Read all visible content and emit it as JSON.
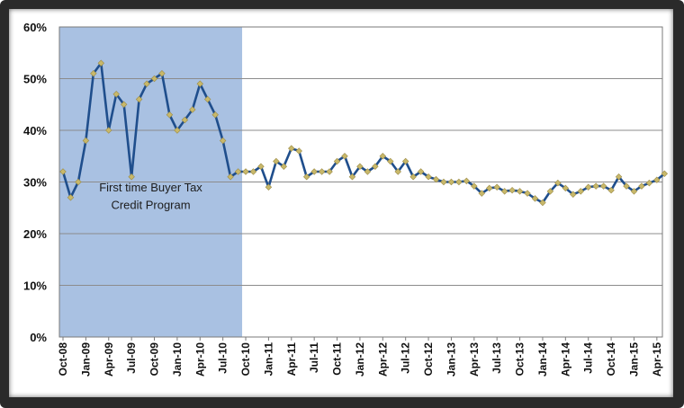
{
  "chart_data": {
    "type": "line",
    "title": "",
    "xlabel": "",
    "ylabel": "",
    "ylim": [
      0,
      60
    ],
    "y_ticks": [
      "0%",
      "10%",
      "20%",
      "30%",
      "40%",
      "50%",
      "60%"
    ],
    "x_tick_labels": [
      "Oct-08",
      "Jan-09",
      "Apr-09",
      "Jul-09",
      "Oct-09",
      "Jan-10",
      "Apr-10",
      "Jul-10",
      "Oct-10",
      "Jan-11",
      "Apr-11",
      "Jul-11",
      "Oct-11",
      "Jan-12",
      "Apr-12",
      "Jul-12",
      "Oct-12",
      "Jan-13",
      "Apr-13",
      "Jul-13",
      "Oct-13",
      "Jan-14",
      "Apr-14",
      "Jul-14",
      "Oct-14",
      "Jan-15",
      "Apr-15"
    ],
    "grid": "horizontal",
    "legend": "none",
    "shaded_region": {
      "label_line1": "First time Buyer Tax",
      "label_line2": "Credit Program",
      "from": "Oct-08",
      "to": "Oct-10",
      "color": "#a9c1e2"
    },
    "series": [
      {
        "line_color": "#1f4e8c",
        "marker_color": "#c8b86a",
        "x": [
          "Oct-08",
          "Nov-08",
          "Dec-08",
          "Jan-09",
          "Feb-09",
          "Mar-09",
          "Apr-09",
          "May-09",
          "Jun-09",
          "Jul-09",
          "Aug-09",
          "Sep-09",
          "Oct-09",
          "Nov-09",
          "Dec-09",
          "Jan-10",
          "Feb-10",
          "Mar-10",
          "Apr-10",
          "May-10",
          "Jun-10",
          "Jul-10",
          "Aug-10",
          "Sep-10",
          "Oct-10",
          "Nov-10",
          "Dec-10",
          "Jan-11",
          "Feb-11",
          "Mar-11",
          "Apr-11",
          "May-11",
          "Jun-11",
          "Jul-11",
          "Aug-11",
          "Sep-11",
          "Oct-11",
          "Nov-11",
          "Dec-11",
          "Jan-12",
          "Feb-12",
          "Mar-12",
          "Apr-12",
          "May-12",
          "Jun-12",
          "Jul-12",
          "Aug-12",
          "Sep-12",
          "Oct-12",
          "Nov-12",
          "Dec-12",
          "Jan-13",
          "Feb-13",
          "Mar-13",
          "Apr-13",
          "May-13",
          "Jun-13",
          "Jul-13",
          "Aug-13",
          "Sep-13",
          "Oct-13",
          "Nov-13",
          "Dec-13",
          "Jan-14",
          "Feb-14",
          "Mar-14",
          "Apr-14",
          "May-14",
          "Jun-14",
          "Jul-14",
          "Aug-14",
          "Sep-14",
          "Oct-14",
          "Nov-14",
          "Dec-14",
          "Jan-15",
          "Feb-15",
          "Mar-15",
          "Apr-15",
          "May-15"
        ],
        "values": [
          32,
          27,
          30,
          38,
          51,
          53,
          40,
          47,
          45,
          31,
          46,
          49,
          50,
          51,
          43,
          40,
          42,
          44,
          49,
          46,
          43,
          38,
          31,
          32,
          32,
          32,
          33,
          29,
          34,
          33,
          36.5,
          36,
          31,
          32,
          32,
          32,
          34,
          35,
          31,
          33,
          32,
          33,
          35,
          34,
          32,
          34,
          31,
          32,
          31,
          30.5,
          30,
          30,
          30,
          30.2,
          29.2,
          27.8,
          28.8,
          29,
          28.2,
          28.4,
          28.2,
          27.8,
          26.8,
          26,
          28.2,
          29.8,
          28.8,
          27.6,
          28.2,
          29,
          29.2,
          29.2,
          28.4,
          31,
          29.2,
          28.2,
          29.2,
          29.8,
          30.4,
          31.6
        ]
      }
    ]
  }
}
